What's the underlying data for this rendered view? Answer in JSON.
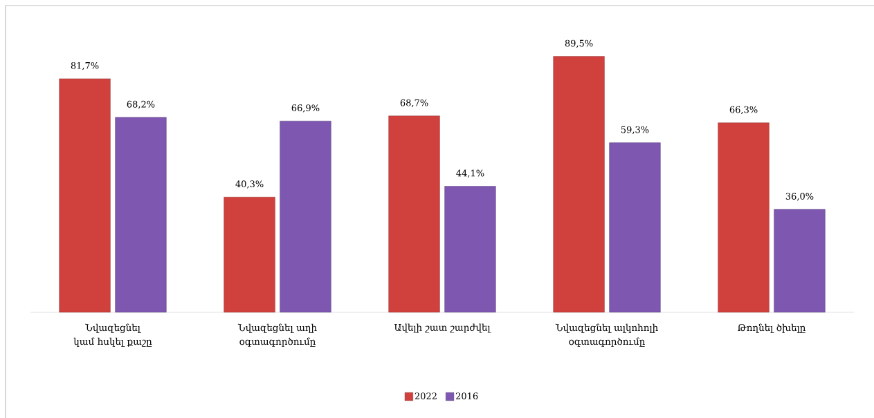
{
  "chart_data": {
    "type": "bar",
    "categories": [
      "Նվազեցնել կամ հսկել քաշը",
      "Նվազեցնել աղի օգտագործումը",
      "Ավելի շատ շարժվել",
      "Նվազեցնել ալկոհոլի օգտագործումը",
      "Թողնել ծխելը"
    ],
    "series": [
      {
        "name": "2022",
        "color": "#d0413e",
        "values": [
          81.7,
          40.3,
          68.7,
          89.5,
          66.3
        ],
        "value_labels": [
          "81,7%",
          "40,3%",
          "68,7%",
          "89,5%",
          "66,3%"
        ]
      },
      {
        "name": "2016",
        "color": "#7e57b0",
        "values": [
          68.2,
          66.9,
          44.1,
          59.3,
          36.0
        ],
        "value_labels": [
          "68,2%",
          "66,9%",
          "44,1%",
          "59,3%",
          "36,0%"
        ]
      }
    ],
    "legend": "bottom",
    "grid": false
  }
}
